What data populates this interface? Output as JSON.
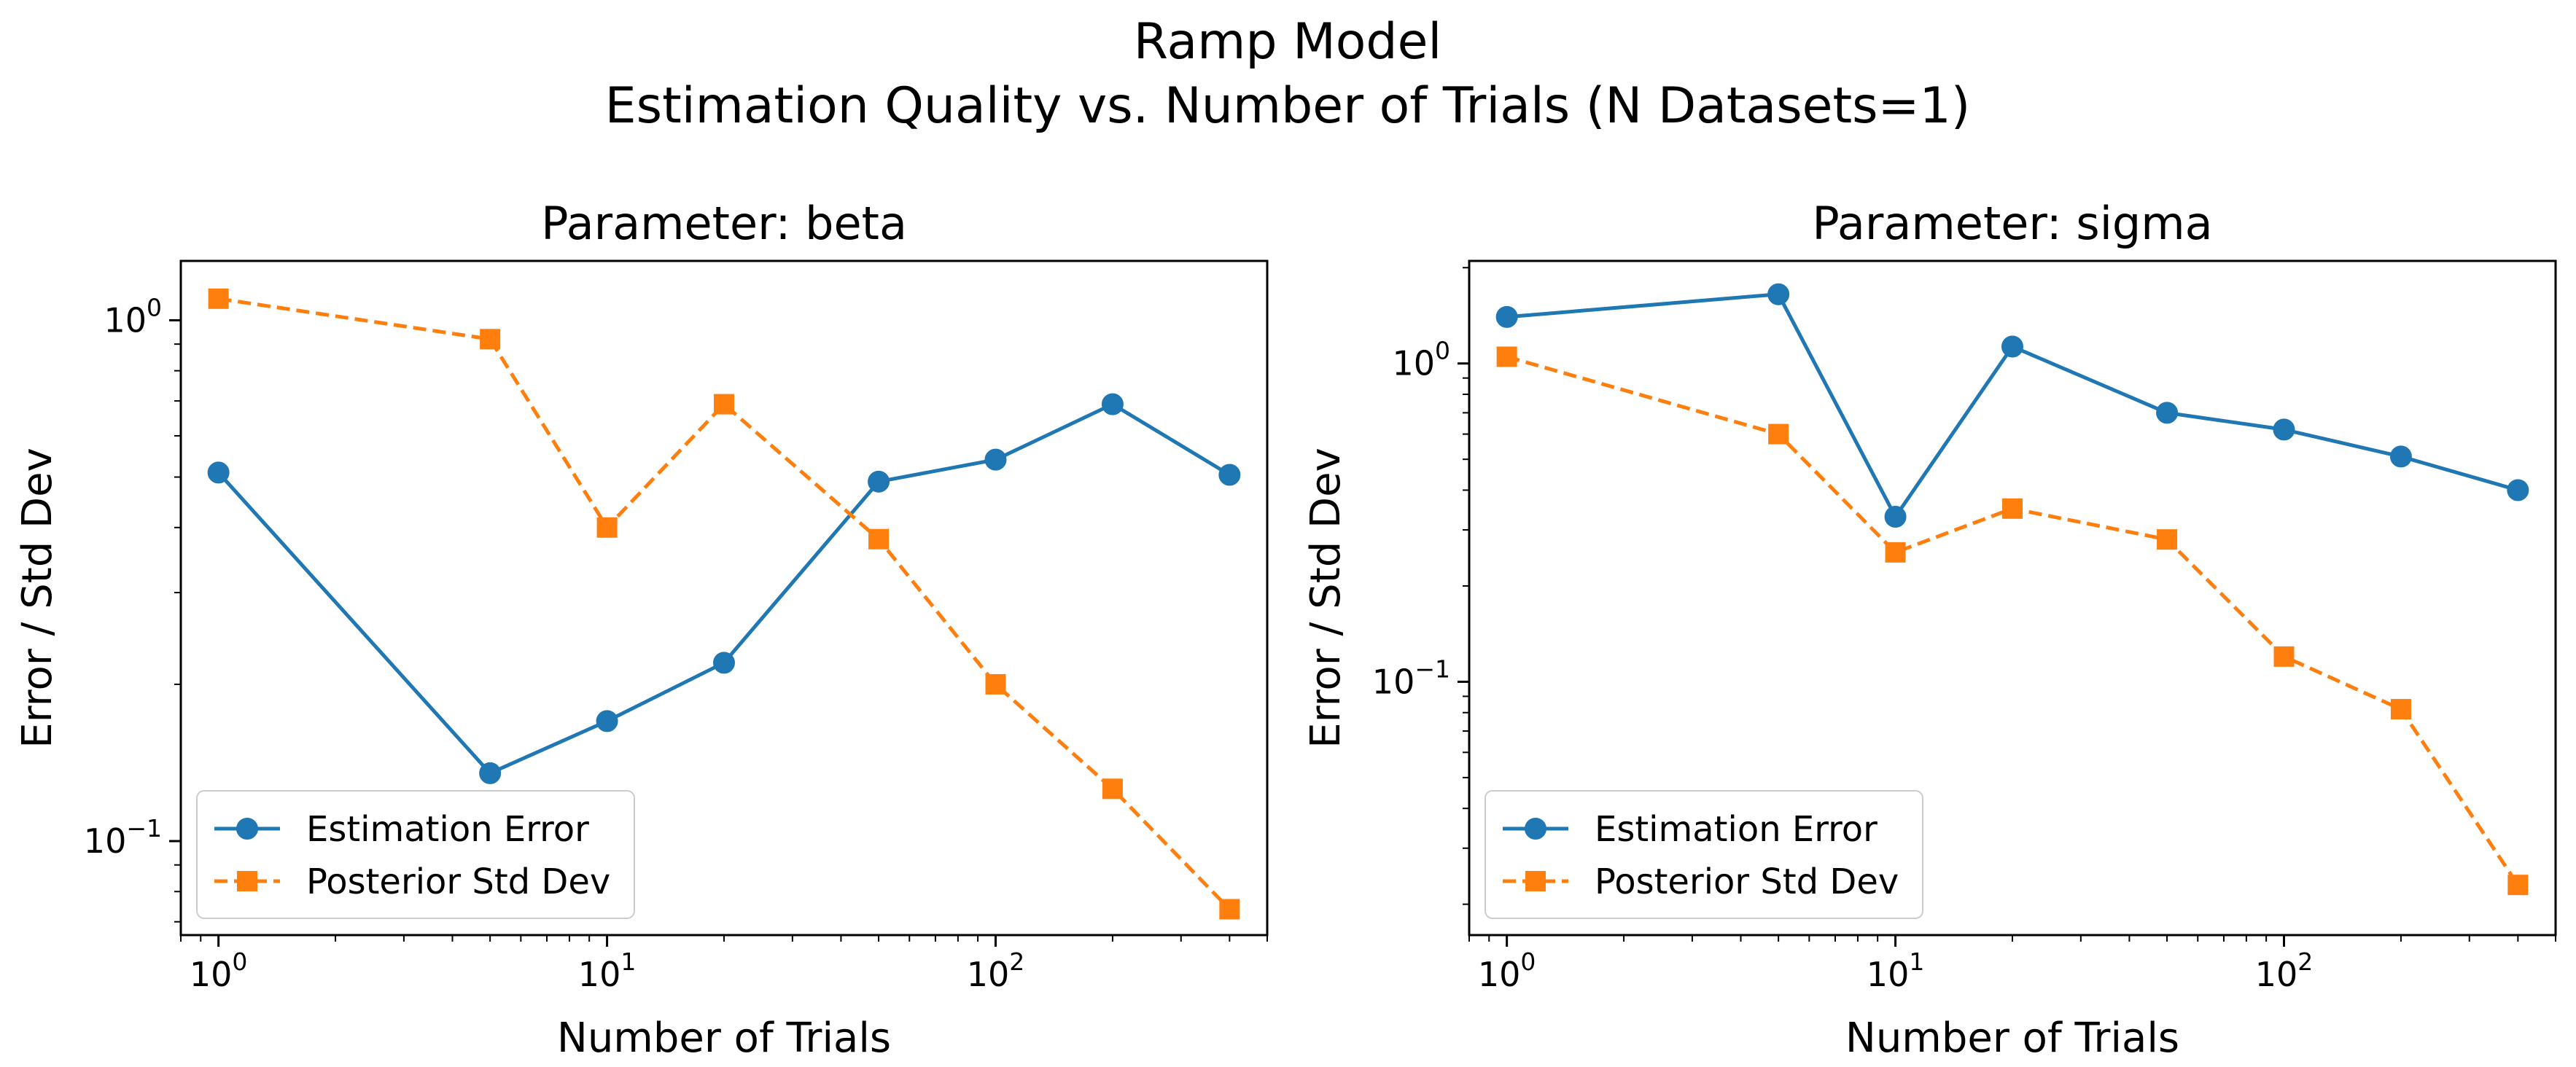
{
  "figure": {
    "title_line1": "Ramp Model",
    "title_line2": "Estimation Quality vs. Number of Trials (N Datasets=1)"
  },
  "colors": {
    "error": "#1f77b4",
    "posterior": "#ff7f0e"
  },
  "chart_data": [
    {
      "type": "line",
      "title": "Parameter: beta",
      "xlabel": "Number of Trials",
      "ylabel": "Error / Std Dev",
      "xscale": "log",
      "yscale": "log",
      "xlim": [
        0.8,
        500
      ],
      "ylim": [
        0.066,
        1.3
      ],
      "xticks": [
        {
          "value": 1,
          "base": "10",
          "exp": "0"
        },
        {
          "value": 10,
          "base": "10",
          "exp": "1"
        },
        {
          "value": 100,
          "base": "10",
          "exp": "2"
        }
      ],
      "yticks": [
        {
          "value": 0.1,
          "base": "10",
          "exp": "−1"
        },
        {
          "value": 1,
          "base": "10",
          "exp": "0"
        }
      ],
      "x": [
        1,
        5,
        10,
        20,
        50,
        100,
        200,
        400
      ],
      "series": [
        {
          "name": "Estimation Error",
          "values": [
            0.51,
            0.135,
            0.17,
            0.22,
            0.49,
            0.54,
            0.69,
            0.505
          ]
        },
        {
          "name": "Posterior Std Dev",
          "values": [
            1.1,
            0.92,
            0.4,
            0.69,
            0.38,
            0.2,
            0.126,
            0.074
          ]
        }
      ],
      "legend": "lower-left",
      "grid": false
    },
    {
      "type": "line",
      "title": "Parameter: sigma",
      "xlabel": "Number of Trials",
      "ylabel": "Error / Std Dev",
      "xscale": "log",
      "yscale": "log",
      "xlim": [
        0.8,
        500
      ],
      "ylim": [
        0.016,
        2.1
      ],
      "xticks": [
        {
          "value": 1,
          "base": "10",
          "exp": "0"
        },
        {
          "value": 10,
          "base": "10",
          "exp": "1"
        },
        {
          "value": 100,
          "base": "10",
          "exp": "2"
        }
      ],
      "yticks": [
        {
          "value": 0.1,
          "base": "10",
          "exp": "−1"
        },
        {
          "value": 1,
          "base": "10",
          "exp": "0"
        }
      ],
      "x": [
        1,
        5,
        10,
        20,
        50,
        100,
        200,
        400
      ],
      "series": [
        {
          "name": "Estimation Error",
          "values": [
            1.4,
            1.65,
            0.33,
            1.13,
            0.7,
            0.62,
            0.51,
            0.4
          ]
        },
        {
          "name": "Posterior Std Dev",
          "values": [
            1.05,
            0.6,
            0.255,
            0.35,
            0.28,
            0.12,
            0.082,
            0.023
          ]
        }
      ],
      "legend": "lower-left",
      "grid": false
    }
  ]
}
